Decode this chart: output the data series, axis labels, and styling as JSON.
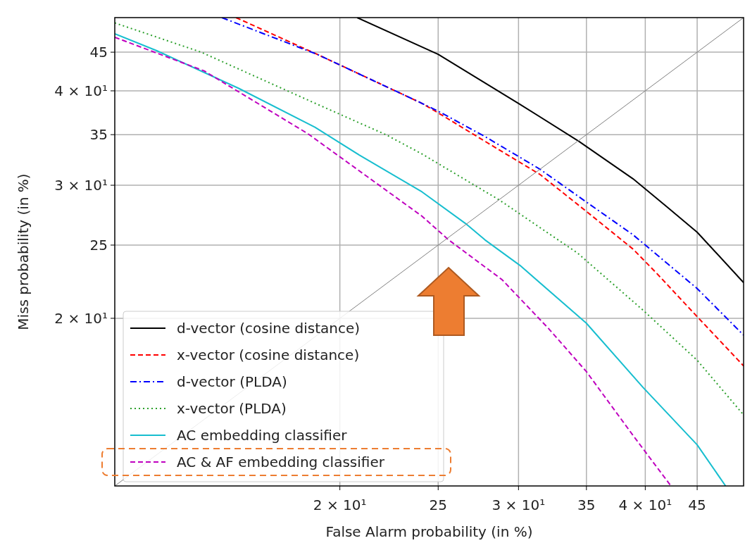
{
  "chart_data": {
    "type": "line",
    "xlabel": "False Alarm probability (in %)",
    "ylabel": "Miss probability (in %)",
    "log": "xy",
    "xlim": [
      12,
      50
    ],
    "ylim": [
      12,
      50
    ],
    "xticks": [
      {
        "value": 20,
        "label": "2 × 10¹"
      },
      25,
      {
        "value": 30,
        "label": "3 × 10¹"
      },
      35,
      {
        "value": 40,
        "label": "4 × 10¹"
      },
      45
    ],
    "yticks": [
      {
        "value": 20,
        "label": "2 × 10¹"
      },
      25,
      {
        "value": 30,
        "label": "3 × 10¹"
      },
      35,
      {
        "value": 40,
        "label": "4 × 10¹"
      },
      45
    ],
    "grid": true,
    "legend": "bottom left",
    "series": [
      {
        "name": "d-vector (cosine distance)",
        "color": "#000000",
        "line_style": "solid",
        "x": [
          20.8,
          25.0,
          30.0,
          34.4,
          38.9,
          42.0,
          45.0,
          50
        ],
        "values": [
          50,
          44.7,
          38.5,
          34.3,
          30.6,
          28.1,
          26.0,
          22.3
        ]
      },
      {
        "name": "x-vector (cosine distance)",
        "color": "#ff0000",
        "line_style": "dashed",
        "x": [
          15.8,
          19.0,
          24.1,
          25.0,
          27.8,
          31.5,
          35.0,
          38.9,
          41.1,
          45.0,
          50
        ],
        "values": [
          50,
          44.7,
          38.5,
          37.4,
          34.3,
          31.0,
          27.7,
          24.7,
          22.9,
          20.1,
          17.3
        ]
      },
      {
        "name": "d-vector (PLDA)",
        "color": "#0000ff",
        "line_style": "dashdot",
        "x": [
          15.3,
          19.0,
          24.1,
          25.0,
          27.8,
          31.5,
          35.0,
          38.9,
          45.0,
          50
        ],
        "values": [
          50,
          44.7,
          38.5,
          37.6,
          34.8,
          31.5,
          28.5,
          25.8,
          21.9,
          19.0
        ]
      },
      {
        "name": "x-vector (PLDA)",
        "color": "#2ca02c",
        "line_style": "dotted",
        "x": [
          12.0,
          14.6,
          19.0,
          22.2,
          24.1,
          28.7,
          34.3,
          39.8,
          45.0,
          50
        ],
        "values": [
          49.2,
          45.0,
          38.4,
          35.0,
          33.0,
          28.7,
          24.4,
          20.5,
          17.6,
          14.9
        ]
      },
      {
        "name": "AC embedding classifier",
        "color": "#17becf",
        "line_style": "solid",
        "x": [
          12.0,
          13.2,
          15.9,
          18.9,
          20.9,
          24.1,
          26.6,
          27.8,
          30.1,
          35.0,
          39.8,
          45.0,
          48.0
        ],
        "values": [
          47.6,
          45.2,
          40.3,
          35.8,
          32.9,
          29.4,
          26.7,
          25.4,
          23.5,
          19.7,
          16.2,
          13.6,
          12.0
        ]
      },
      {
        "name": "AC & AF embedding classifier",
        "color": "#bf00bf",
        "line_style": "dashed",
        "x": [
          12.0,
          14.7,
          18.6,
          24.1,
          25.6,
          28.9,
          32.1,
          35.0,
          38.9,
          42.4
        ],
        "values": [
          47.1,
          42.5,
          35.1,
          27.3,
          25.4,
          22.5,
          19.4,
          17.0,
          14.0,
          12.0
        ]
      },
      {
        "color": "#808080",
        "line_style": "solid",
        "x": [
          12,
          50
        ],
        "values": [
          12,
          50
        ]
      }
    ]
  }
}
